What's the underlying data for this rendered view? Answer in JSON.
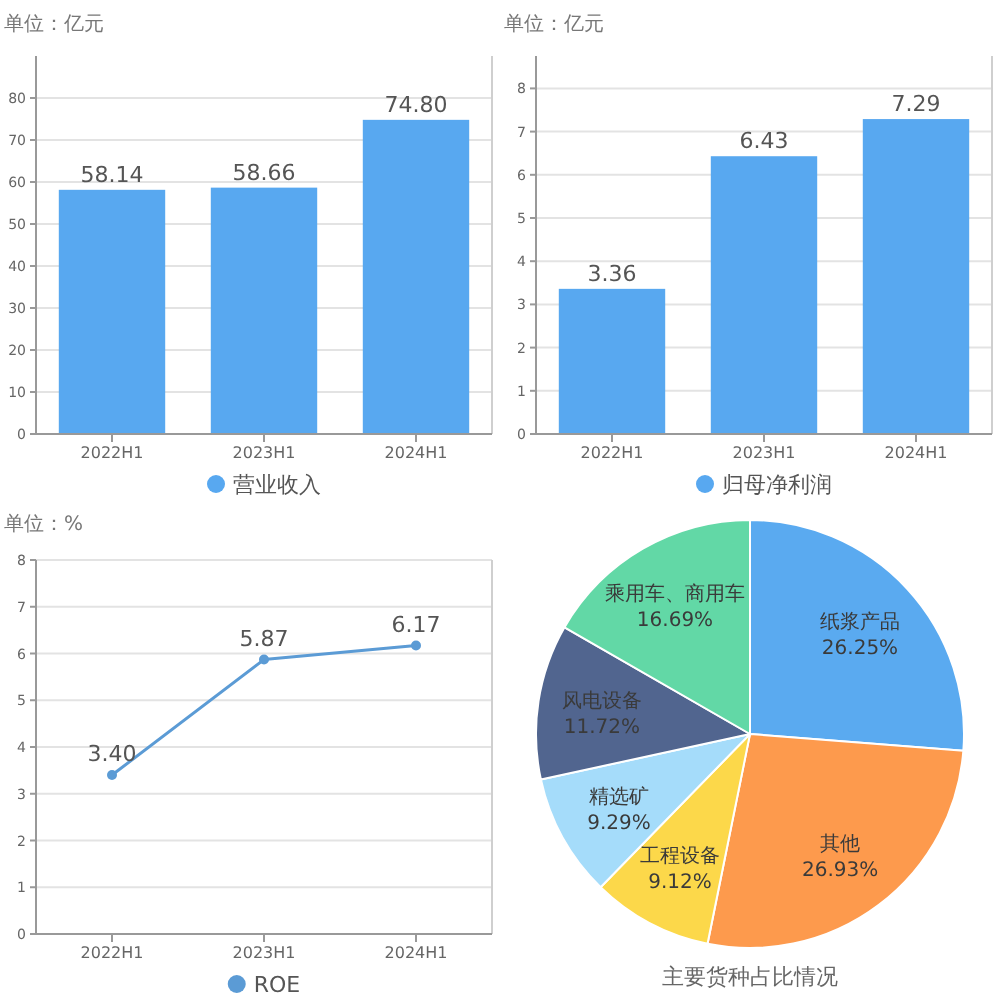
{
  "chart_data": [
    {
      "type": "bar",
      "ylabel": "单位：亿元",
      "categories": [
        "2022H1",
        "2023H1",
        "2024H1"
      ],
      "series": [
        {
          "name": "营业收入",
          "color": "#58a8f0",
          "values": [
            58.14,
            58.66,
            74.8
          ],
          "value_labels": [
            "58.14",
            "58.66",
            "74.80"
          ]
        }
      ],
      "ylim": [
        0,
        90
      ],
      "yticks": [
        0,
        10,
        20,
        30,
        40,
        50,
        60,
        70,
        80
      ],
      "grid": "y",
      "legend": "bottom"
    },
    {
      "type": "bar",
      "ylabel": "单位：亿元",
      "categories": [
        "2022H1",
        "2023H1",
        "2024H1"
      ],
      "series": [
        {
          "name": "归母净利润",
          "color": "#58a8f0",
          "values": [
            3.36,
            6.43,
            7.29
          ],
          "value_labels": [
            "3.36",
            "6.43",
            "7.29"
          ]
        }
      ],
      "ylim": [
        0,
        8.75
      ],
      "yticks": [
        0,
        1,
        2,
        3,
        4,
        5,
        6,
        7,
        8
      ],
      "grid": "y",
      "legend": "bottom"
    },
    {
      "type": "line",
      "ylabel": "单位：%",
      "categories": [
        "2022H1",
        "2023H1",
        "2024H1"
      ],
      "series": [
        {
          "name": "ROE",
          "color": "#5b9bd5",
          "values": [
            3.4,
            5.87,
            6.17
          ],
          "value_labels": [
            "3.40",
            "5.87",
            "6.17"
          ]
        }
      ],
      "ylim": [
        0,
        8
      ],
      "yticks": [
        0,
        1,
        2,
        3,
        4,
        5,
        6,
        7,
        8
      ],
      "grid": "y",
      "legend": "bottom",
      "marker": "circle",
      "line_style": "solid"
    },
    {
      "type": "pie",
      "title": "主要货种占比情况",
      "categories": [
        "纸浆产品",
        "其他",
        "工程设备",
        "精选矿",
        "风电设备",
        "乘用车、商用车"
      ],
      "values": [
        26.25,
        26.93,
        9.12,
        9.29,
        11.72,
        16.69
      ],
      "colors": [
        "#5aaaf0",
        "#fd9a4d",
        "#fcd84a",
        "#a5dcfa",
        "#51658f",
        "#62d8a6"
      ],
      "value_labels": [
        "26.25%",
        "26.93%",
        "9.12%",
        "9.29%",
        "11.72%",
        "16.69%"
      ]
    }
  ]
}
